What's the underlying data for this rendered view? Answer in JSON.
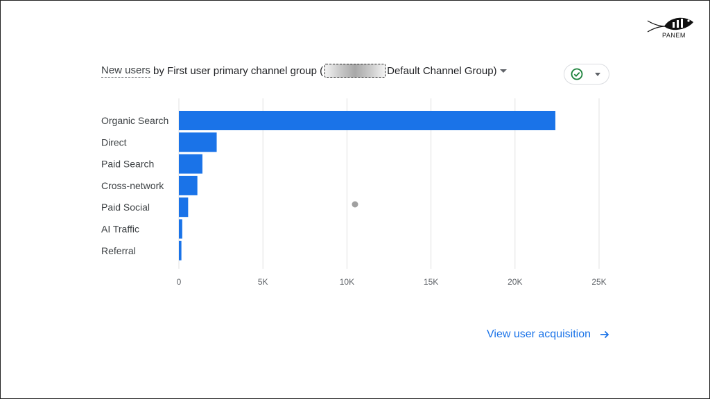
{
  "branding": {
    "logo_text": "PANEM"
  },
  "card": {
    "title_metric": "New users",
    "title_mid": " by First user primary channel group (",
    "title_end": "Default Channel Group)"
  },
  "compare": {
    "icon": "check-circle-icon"
  },
  "footer": {
    "link_label": "View user acquisition",
    "link_icon": "arrow-right-icon"
  },
  "colors": {
    "bar": "#1a73e8",
    "grid": "#e0e0e0",
    "check": "#188038",
    "link": "#1a73e8"
  },
  "chart_data": {
    "type": "bar",
    "orientation": "horizontal",
    "categories": [
      "Organic Search",
      "Direct",
      "Paid Search",
      "Cross-network",
      "Paid Social",
      "AI Traffic",
      "Referral"
    ],
    "values": [
      22400,
      2250,
      1400,
      1100,
      550,
      200,
      150
    ],
    "xlim": [
      0,
      25000
    ],
    "xticks": [
      0,
      5000,
      10000,
      15000,
      20000,
      25000
    ],
    "xtick_labels": [
      "0",
      "5K",
      "10K",
      "15K",
      "20K",
      "25K"
    ],
    "grid": true
  }
}
